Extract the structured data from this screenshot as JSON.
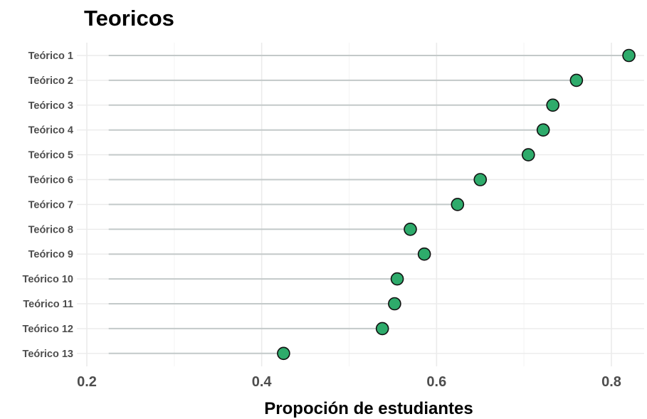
{
  "chart_data": {
    "type": "lollipop",
    "title": "Teoricos",
    "xlabel": "Propoción de estudiantes",
    "ylabel": "",
    "xlim": [
      0.2,
      0.84
    ],
    "x_ticks": [
      0.2,
      0.4,
      0.6,
      0.8
    ],
    "x_tick_labels": [
      "0.2",
      "0.4",
      "0.6",
      "0.8"
    ],
    "stem_start": 0.225,
    "grid": true,
    "categories": [
      "Teórico 1",
      "Teórico 2",
      "Teórico 3",
      "Teórico 4",
      "Teórico 5",
      "Teórico 6",
      "Teórico 7",
      "Teórico 8",
      "Teórico 9",
      "Teórico 10",
      "Teórico 11",
      "Teórico 12",
      "Teórico 13"
    ],
    "values": [
      0.82,
      0.76,
      0.733,
      0.722,
      0.705,
      0.65,
      0.624,
      0.57,
      0.586,
      0.555,
      0.552,
      0.538,
      0.425
    ],
    "colors": {
      "point_fill": "#2eab6b",
      "point_stroke": "#111111",
      "stem": "#c3c9c9",
      "grid_major": "#ebebeb",
      "grid_minor": "#f5f5f5"
    }
  }
}
